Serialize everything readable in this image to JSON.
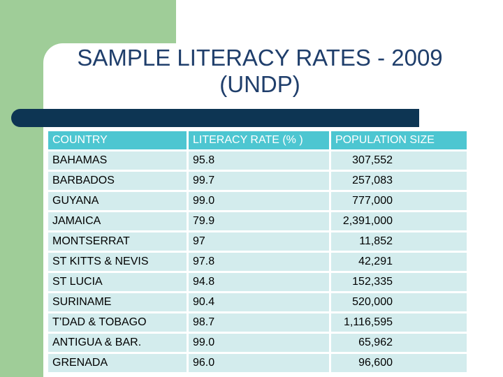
{
  "slide": {
    "title_line1": "SAMPLE LITERACY RATES - 2009",
    "title_line2": "(UNDP)"
  },
  "table": {
    "headers": [
      "COUNTRY",
      "LITERACY RATE (% )",
      "POPULATION SIZE"
    ],
    "rows": [
      [
        "BAHAMAS",
        "95.8",
        "307,552"
      ],
      [
        "BARBADOS",
        "99.7",
        "257,083"
      ],
      [
        "GUYANA",
        "99.0",
        "777,000"
      ],
      [
        "JAMAICA",
        "79.9",
        "2,391,000"
      ],
      [
        "MONTSERRAT",
        "97",
        "11,852"
      ],
      [
        "ST KITTS & NEVIS",
        "97.8",
        "42,291"
      ],
      [
        "ST LUCIA",
        "94.8",
        "152,335"
      ],
      [
        "SURINAME",
        "90.4",
        "520,000"
      ],
      [
        "T’DAD & TOBAGO",
        "98.7",
        "1,116,595"
      ],
      [
        "ANTIGUA & BAR.",
        "99.0",
        "65,962"
      ],
      [
        "GRENADA",
        "96.0",
        "96,600"
      ]
    ]
  },
  "colors": {
    "accent_green": "#9fcd98",
    "title_blue": "#1f3e6b",
    "bar_navy": "#0d3553",
    "header_teal": "#4dc6d1",
    "row_light": "#d3eced"
  }
}
